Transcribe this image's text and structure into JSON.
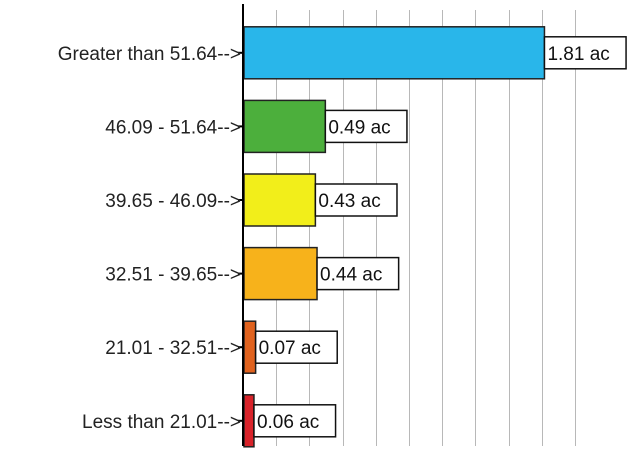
{
  "chart_data": {
    "type": "bar",
    "orientation": "horizontal",
    "categories": [
      "Greater than 51.64-->",
      "46.09 - 51.64-->",
      "39.65 - 46.09-->",
      "32.51 - 39.65-->",
      "21.01 - 32.51-->",
      "Less than 21.01-->"
    ],
    "values": [
      1.81,
      0.49,
      0.43,
      0.44,
      0.07,
      0.06
    ],
    "value_labels": [
      "1.81 ac",
      "0.49 ac",
      "0.43 ac",
      "0.44 ac",
      "0.07 ac",
      "0.06 ac"
    ],
    "colors": [
      "#29b6ea",
      "#4caf3c",
      "#f2ee1a",
      "#f7b21b",
      "#e0621e",
      "#d8232a"
    ],
    "xlim": [
      0,
      2.0
    ],
    "grid": "vertical",
    "legend": "none"
  }
}
